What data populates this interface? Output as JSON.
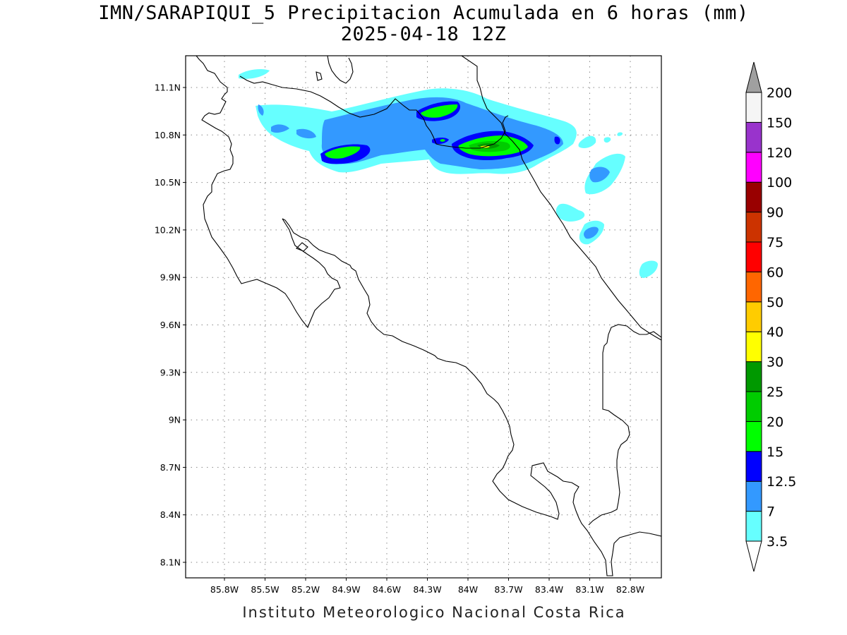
{
  "title": {
    "line1": "IMN/SARAPIQUI_5 Precipitacion Acumulada en 6 horas (mm)",
    "line2": "2025-04-18 12Z"
  },
  "credit": "Instituto Meteorologico Nacional Costa Rica",
  "axes": {
    "lat_labels": [
      "11.1N",
      "10.8N",
      "10.5N",
      "10.2N",
      "9.9N",
      "9.6N",
      "9.3N",
      "9N",
      "8.7N",
      "8.4N",
      "8.1N"
    ],
    "lon_labels": [
      "85.8W",
      "85.5W",
      "85.2W",
      "84.9W",
      "84.6W",
      "84.3W",
      "84W",
      "83.7W",
      "83.4W",
      "83.1W",
      "82.8W"
    ],
    "grid": "dotted"
  },
  "colorbar": {
    "levels": [
      "3.5",
      "7",
      "12.5",
      "15",
      "20",
      "25",
      "30",
      "40",
      "50",
      "60",
      "75",
      "90",
      "100",
      "120",
      "150",
      "200"
    ],
    "colors": [
      "#ffffff",
      "#66ffff",
      "#3399ff",
      "#0000ff",
      "#00ff00",
      "#00cc00",
      "#009900",
      "#ffff00",
      "#ffcc00",
      "#ff6600",
      "#ff0000",
      "#cc3300",
      "#990000",
      "#ff00ff",
      "#9933cc",
      "#f5f5f5"
    ],
    "top_arrow_color": "#a0a0a0"
  }
}
